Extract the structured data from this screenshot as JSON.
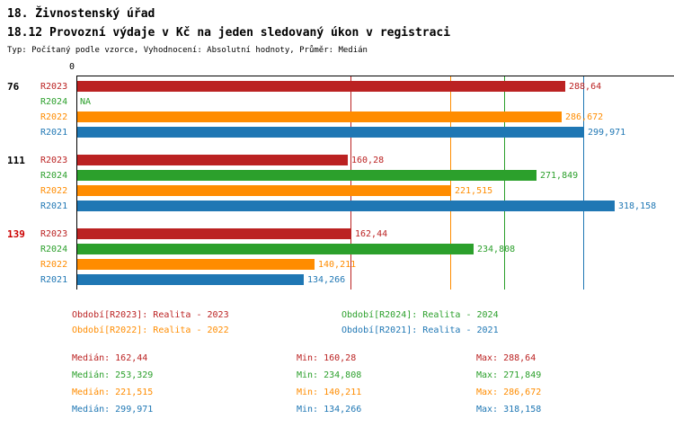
{
  "header": {
    "title": "18. Živnostenský úřad",
    "subtitle": "18.12 Provozní výdaje v Kč na jeden sledovaný úkon v registraci",
    "meta": "Typ: Počítaný podle vzorce, Vyhodnocení: Absolutní hodnoty, Průměr: Medián"
  },
  "colors": {
    "R2023": "#bb2222",
    "R2024": "#2ca02c",
    "R2022": "#ff8c00",
    "R2021": "#1f77b4",
    "axis": "#000000",
    "text": "#000000",
    "highlight_group": "#cc0000",
    "background": "#ffffff"
  },
  "chart_data": {
    "type": "bar",
    "orientation": "horizontal",
    "title": "18.12 Provozní výdaje v Kč na jeden sledovaný úkon v registraci",
    "average_type": "Medián",
    "axis": {
      "zero_label": "0",
      "min": 0
    },
    "series_order": [
      "R2023",
      "R2024",
      "R2022",
      "R2021"
    ],
    "groups": [
      {
        "label": "76",
        "highlight": false,
        "bars": [
          {
            "series": "R2023",
            "value": 288.64,
            "display": "288,64"
          },
          {
            "series": "R2024",
            "value": null,
            "display": "NA"
          },
          {
            "series": "R2022",
            "value": 286.672,
            "display": "286,672"
          },
          {
            "series": "R2021",
            "value": 299.971,
            "display": "299,971"
          }
        ]
      },
      {
        "label": "111",
        "highlight": false,
        "bars": [
          {
            "series": "R2023",
            "value": 160.28,
            "display": "160,28"
          },
          {
            "series": "R2024",
            "value": 271.849,
            "display": "271,849"
          },
          {
            "series": "R2022",
            "value": 221.515,
            "display": "221,515"
          },
          {
            "series": "R2021",
            "value": 318.158,
            "display": "318,158"
          }
        ]
      },
      {
        "label": "139",
        "highlight": true,
        "bars": [
          {
            "series": "R2023",
            "value": 162.44,
            "display": "162,44"
          },
          {
            "series": "R2024",
            "value": 234.808,
            "display": "234,808"
          },
          {
            "series": "R2022",
            "value": 140.211,
            "display": "140,211"
          },
          {
            "series": "R2021",
            "value": 134.266,
            "display": "134,266"
          }
        ]
      }
    ],
    "median_lines": [
      {
        "series": "R2023",
        "value": 162.44
      },
      {
        "series": "R2024",
        "value": 253.329
      },
      {
        "series": "R2022",
        "value": 221.515
      },
      {
        "series": "R2021",
        "value": 299.971
      }
    ],
    "legend": [
      {
        "series": "R2023",
        "label": "Období[R2023]: Realita - 2023"
      },
      {
        "series": "R2024",
        "label": "Období[R2024]: Realita - 2024"
      },
      {
        "series": "R2022",
        "label": "Období[R2022]: Realita - 2022"
      },
      {
        "series": "R2021",
        "label": "Období[R2021]: Realita - 2021"
      }
    ],
    "stats": [
      {
        "series": "R2023",
        "median": "Medián: 162,44",
        "min": "Min: 160,28",
        "max": "Max: 288,64"
      },
      {
        "series": "R2024",
        "median": "Medián: 253,329",
        "min": "Min: 234,808",
        "max": "Max: 271,849"
      },
      {
        "series": "R2022",
        "median": "Medián: 221,515",
        "min": "Min: 140,211",
        "max": "Max: 286,672"
      },
      {
        "series": "R2021",
        "median": "Medián: 299,971",
        "min": "Min: 134,266",
        "max": "Max: 318,158"
      }
    ]
  }
}
